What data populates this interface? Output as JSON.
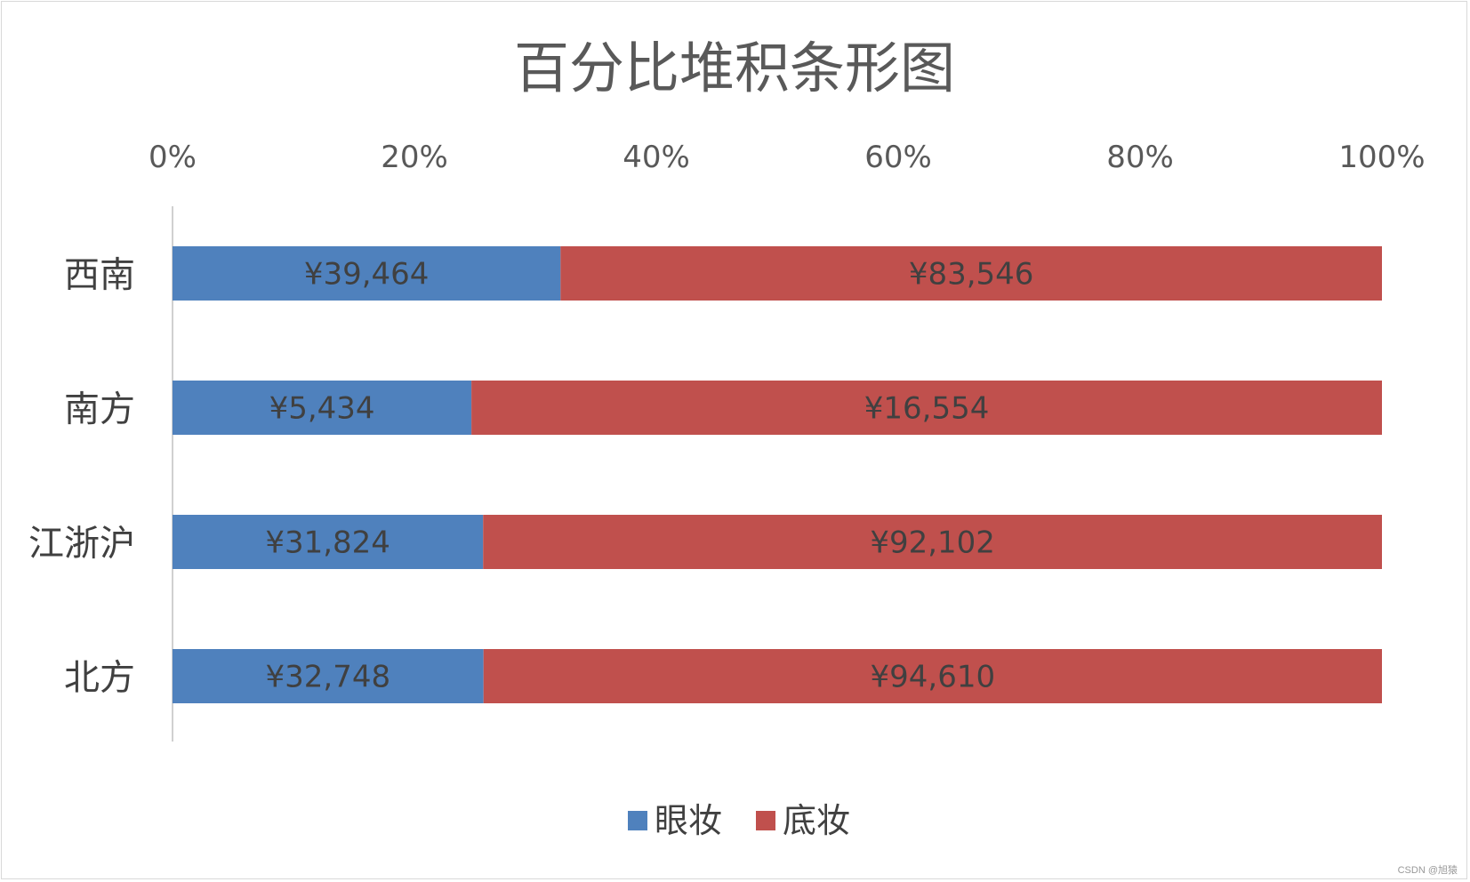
{
  "chart_data": {
    "type": "bar",
    "orientation": "horizontal",
    "stacked": "percent",
    "title": "百分比堆积条形图",
    "categories": [
      "西南",
      "南方",
      "江浙沪",
      "北方"
    ],
    "series": [
      {
        "name": "眼妆",
        "color": "#4f81bd",
        "values": [
          39464,
          5434,
          31824,
          32748
        ],
        "labels": [
          "¥39,464",
          "¥5,434",
          "¥31,824",
          "¥32,748"
        ]
      },
      {
        "name": "底妆",
        "color": "#c0504d",
        "values": [
          83546,
          16554,
          92102,
          94610
        ],
        "labels": [
          "¥83,546",
          "¥16,554",
          "¥92,102",
          "¥94,610"
        ]
      }
    ],
    "xaxis": {
      "position": "top",
      "range": [
        0,
        100
      ],
      "ticks": [
        "0%",
        "20%",
        "40%",
        "60%",
        "80%",
        "100%"
      ]
    },
    "grid": false,
    "legend": "bottom-center"
  },
  "watermark": "CSDN @旭猿"
}
